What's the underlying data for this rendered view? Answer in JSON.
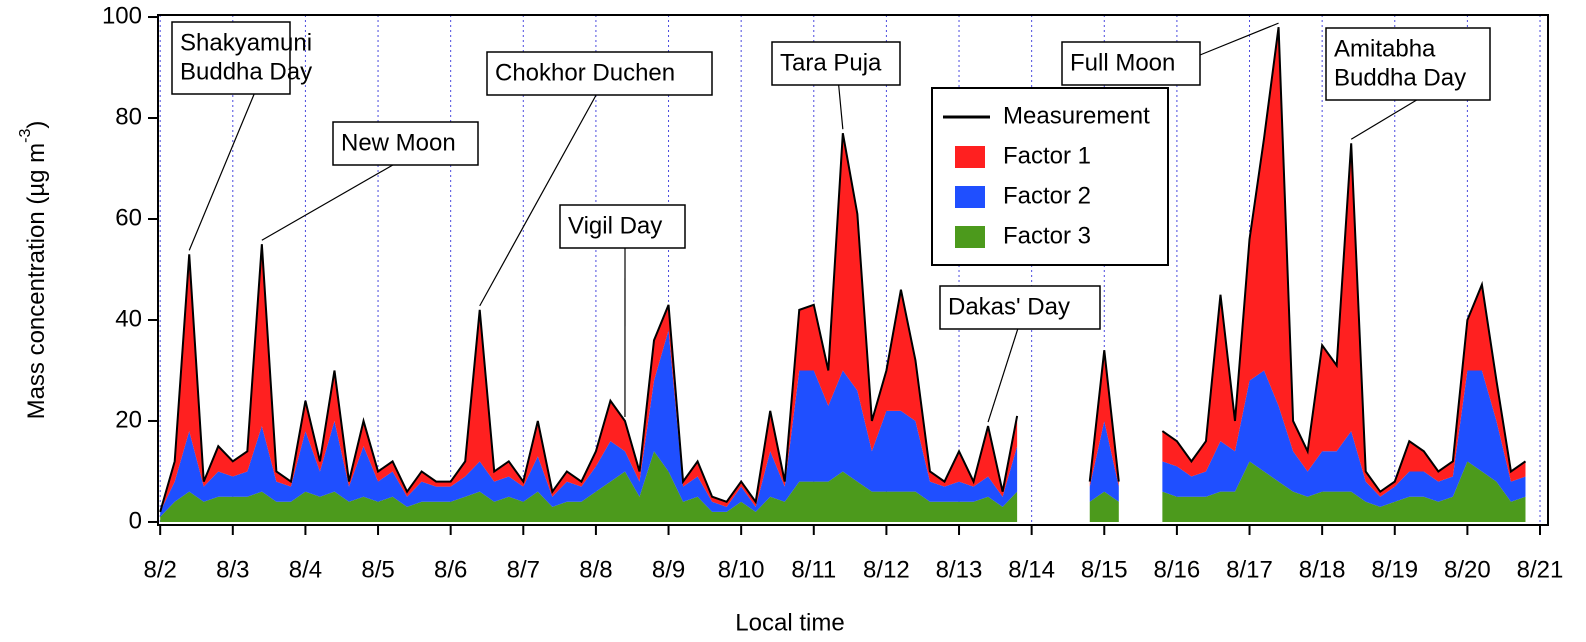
{
  "chart_data": {
    "type": "stacked_area",
    "ylabel": "Mass concentration (µg m",
    "ylabel_sup": "-3",
    "ylabel_end": ")",
    "xlabel": "Local time",
    "xlim": [
      -0.03,
      19.11
    ],
    "ylim": [
      -0.6,
      100.4
    ],
    "xticks": [
      {
        "value": 0,
        "label": "8/2"
      },
      {
        "value": 1,
        "label": "8/3"
      },
      {
        "value": 2,
        "label": "8/4"
      },
      {
        "value": 3,
        "label": "8/5"
      },
      {
        "value": 4,
        "label": "8/6"
      },
      {
        "value": 5,
        "label": "8/7"
      },
      {
        "value": 6,
        "label": "8/8"
      },
      {
        "value": 7,
        "label": "8/9"
      },
      {
        "value": 8,
        "label": "8/10"
      },
      {
        "value": 9,
        "label": "8/11"
      },
      {
        "value": 10,
        "label": "8/12"
      },
      {
        "value": 11,
        "label": "8/13"
      },
      {
        "value": 12,
        "label": "8/14"
      },
      {
        "value": 13,
        "label": "8/15"
      },
      {
        "value": 14,
        "label": "8/16"
      },
      {
        "value": 15,
        "label": "8/17"
      },
      {
        "value": 16,
        "label": "8/18"
      },
      {
        "value": 17,
        "label": "8/19"
      },
      {
        "value": 18,
        "label": "8/20"
      },
      {
        "value": 19,
        "label": "8/21"
      }
    ],
    "yticks": [
      0,
      20,
      40,
      60,
      80,
      100
    ],
    "grid_x": true,
    "x": [
      0,
      0.2,
      0.4,
      0.6,
      0.8,
      1,
      1.2,
      1.4,
      1.6,
      1.8,
      2,
      2.2,
      2.4,
      2.6,
      2.8,
      3,
      3.2,
      3.4,
      3.6,
      3.8,
      4,
      4.2,
      4.4,
      4.6,
      4.8,
      5,
      5.2,
      5.4,
      5.6,
      5.8,
      6,
      6.2,
      6.4,
      6.6,
      6.8,
      7,
      7.2,
      7.4,
      7.6,
      7.8,
      8,
      8.2,
      8.4,
      8.6,
      8.8,
      9,
      9.2,
      9.4,
      9.6,
      9.8,
      10,
      10.2,
      10.4,
      10.6,
      10.8,
      11,
      11.2,
      11.4,
      11.6,
      11.8,
      12,
      12.2,
      12.4,
      12.6,
      12.8,
      13,
      13.2,
      13.4,
      13.6,
      13.8,
      14,
      14.2,
      14.4,
      14.6,
      14.8,
      15,
      15.2,
      15.4,
      15.6,
      15.8,
      16,
      16.2,
      16.4,
      16.6,
      16.8,
      17,
      17.2,
      17.4,
      17.6,
      17.8,
      18,
      18.2,
      18.4,
      18.6,
      18.8
    ],
    "series": [
      {
        "name": "Factor 3",
        "color": "#4c9a1c",
        "stack": true,
        "values": [
          1,
          4,
          6,
          4,
          5,
          5,
          5,
          6,
          4,
          4,
          6,
          5,
          6,
          4,
          5,
          4,
          5,
          3,
          4,
          4,
          4,
          5,
          6,
          4,
          5,
          4,
          6,
          3,
          4,
          4,
          6,
          8,
          10,
          5,
          14,
          10,
          4,
          5,
          2,
          2,
          4,
          2,
          5,
          4,
          8,
          8,
          8,
          10,
          8,
          6,
          6,
          6,
          6,
          4,
          4,
          4,
          4,
          5,
          3,
          6,
          null,
          null,
          null,
          null,
          4,
          6,
          4,
          null,
          null,
          6,
          5,
          5,
          5,
          6,
          6,
          12,
          10,
          8,
          6,
          5,
          6,
          6,
          6,
          4,
          3,
          4,
          5,
          5,
          4,
          5,
          12,
          10,
          8,
          4,
          5
        ]
      },
      {
        "name": "Factor 2",
        "color": "#1f4fff",
        "stack": true,
        "values": [
          1,
          4,
          12,
          3,
          5,
          4,
          5,
          13,
          4,
          3,
          12,
          5,
          14,
          3,
          10,
          4,
          5,
          2,
          4,
          3,
          3,
          4,
          6,
          4,
          4,
          3,
          7,
          2,
          4,
          3,
          5,
          8,
          4,
          3,
          14,
          28,
          3,
          4,
          2,
          1,
          3,
          1,
          9,
          3,
          22,
          22,
          15,
          20,
          18,
          8,
          16,
          16,
          14,
          4,
          3,
          4,
          3,
          4,
          2,
          9,
          null,
          null,
          null,
          null,
          3,
          14,
          3,
          null,
          null,
          6,
          6,
          4,
          5,
          10,
          8,
          16,
          20,
          15,
          8,
          5,
          8,
          8,
          12,
          4,
          2,
          3,
          5,
          5,
          4,
          4,
          18,
          20,
          12,
          4,
          4
        ]
      },
      {
        "name": "Factor 1",
        "color": "#ff2020",
        "stack": true,
        "values": [
          0,
          4,
          35,
          1,
          5,
          3,
          4,
          36,
          2,
          1,
          6,
          2,
          10,
          1,
          5,
          2,
          2,
          1,
          2,
          1,
          1,
          3,
          30,
          2,
          3,
          1,
          7,
          1,
          2,
          1,
          3,
          8,
          6,
          2,
          8,
          5,
          1,
          3,
          1,
          1,
          1,
          1,
          8,
          1,
          12,
          13,
          7,
          47,
          35,
          6,
          8,
          24,
          12,
          2,
          1,
          6,
          1,
          10,
          1,
          6,
          null,
          null,
          null,
          null,
          1,
          14,
          1,
          null,
          null,
          6,
          5,
          3,
          6,
          29,
          6,
          28,
          46,
          75,
          6,
          4,
          21,
          17,
          57,
          2,
          1,
          1,
          6,
          4,
          2,
          3,
          10,
          17,
          8,
          2,
          3
        ]
      },
      {
        "name": "Measurement",
        "color": "#000000",
        "stack": false,
        "values": [
          2,
          12,
          53,
          8,
          15,
          12,
          14,
          55,
          10,
          8,
          24,
          12,
          30,
          8,
          20,
          10,
          12,
          6,
          10,
          8,
          8,
          12,
          42,
          10,
          12,
          8,
          20,
          6,
          10,
          8,
          14,
          24,
          20,
          10,
          36,
          43,
          8,
          12,
          5,
          4,
          8,
          4,
          22,
          8,
          42,
          43,
          30,
          77,
          61,
          20,
          30,
          46,
          32,
          10,
          8,
          14,
          8,
          19,
          6,
          21,
          null,
          null,
          null,
          null,
          8,
          34,
          8,
          null,
          null,
          18,
          16,
          12,
          16,
          45,
          20,
          56,
          76,
          98,
          20,
          14,
          35,
          31,
          75,
          10,
          6,
          8,
          16,
          14,
          10,
          12,
          40,
          47,
          28,
          10,
          12
        ]
      }
    ],
    "legend_order": [
      3,
      2,
      1,
      0
    ],
    "annotations": [
      {
        "lines": [
          "Shakyamuni",
          "Buddha Day"
        ],
        "x": 0.4
      },
      {
        "lines": [
          "New Moon"
        ],
        "x": 1.4
      },
      {
        "lines": [
          "Chokhor Duchen"
        ],
        "x": 4.4
      },
      {
        "lines": [
          "Vigil Day"
        ],
        "x": 6.4
      },
      {
        "lines": [
          "Tara Puja"
        ],
        "x": 9.4
      },
      {
        "lines": [
          "Dakas' Day"
        ],
        "x": 11.4
      },
      {
        "lines": [
          "Full Moon"
        ],
        "x": 15.4
      },
      {
        "lines": [
          "Amitabha",
          "Buddha Day"
        ],
        "x": 16.4
      }
    ]
  }
}
